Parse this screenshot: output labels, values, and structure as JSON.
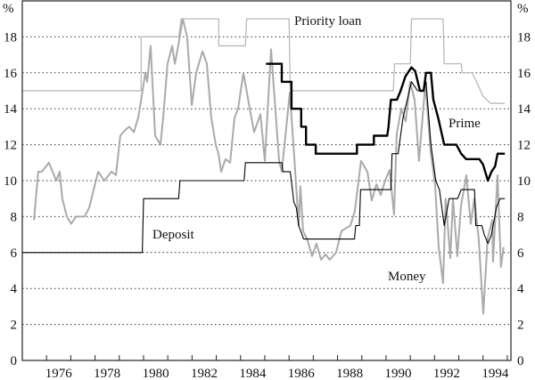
{
  "chart_data": {
    "type": "line",
    "title": "",
    "xlabel": "",
    "ylabel_left": "%",
    "ylabel_right": "%",
    "xlim": [
      1975,
      1995.15
    ],
    "ylim": [
      0,
      20
    ],
    "y_ticks": [
      0,
      2,
      4,
      6,
      8,
      10,
      12,
      14,
      16,
      18
    ],
    "x_tick_labels": [
      "1976",
      "1978",
      "1980",
      "1982",
      "1984",
      "1986",
      "1988",
      "1990",
      "1992",
      "1994"
    ],
    "grid": "horizontal dotted",
    "colors": {
      "priority_loan": "#b4b4b4",
      "money": "#aaaaaa",
      "prime": "#000000",
      "deposit": "#000000"
    },
    "series": [
      {
        "name": "Priority loan",
        "style": "step",
        "points": [
          [
            1975,
            15
          ],
          [
            1979.9,
            15
          ],
          [
            1979.9,
            18
          ],
          [
            1981.45,
            18
          ],
          [
            1981.55,
            19
          ],
          [
            1983.1,
            19
          ],
          [
            1983.1,
            17.5
          ],
          [
            1984.2,
            17.5
          ],
          [
            1984.25,
            19
          ],
          [
            1986.0,
            19
          ],
          [
            1986.05,
            15
          ],
          [
            1990.3,
            15
          ],
          [
            1990.35,
            16.5
          ],
          [
            1991.0,
            16.5
          ],
          [
            1991.05,
            19
          ],
          [
            1992.35,
            19
          ],
          [
            1992.4,
            16.5
          ],
          [
            1993.1,
            16.5
          ],
          [
            1993.15,
            16
          ],
          [
            1993.55,
            16
          ],
          [
            1993.8,
            15.3
          ],
          [
            1994.0,
            14.7
          ],
          [
            1994.3,
            14.3
          ],
          [
            1994.9,
            14.3
          ]
        ]
      },
      {
        "name": "Money",
        "style": "line",
        "points": [
          [
            1975.48,
            7.8
          ],
          [
            1975.66,
            10.5
          ],
          [
            1975.81,
            10.5
          ],
          [
            1976.1,
            11
          ],
          [
            1976.4,
            10
          ],
          [
            1976.54,
            10.5
          ],
          [
            1976.65,
            9
          ],
          [
            1976.84,
            8
          ],
          [
            1977.02,
            7.6
          ],
          [
            1977.21,
            8
          ],
          [
            1977.57,
            8
          ],
          [
            1977.76,
            8.5
          ],
          [
            1978.13,
            10.5
          ],
          [
            1978.38,
            10
          ],
          [
            1978.68,
            10.5
          ],
          [
            1978.86,
            10.3
          ],
          [
            1979.04,
            12.5
          ],
          [
            1979.23,
            12.8
          ],
          [
            1979.41,
            13
          ],
          [
            1979.6,
            12.7
          ],
          [
            1979.78,
            13.5
          ],
          [
            1979.96,
            15
          ],
          [
            1980.07,
            16
          ],
          [
            1980.15,
            15.5
          ],
          [
            1980.29,
            17.5
          ],
          [
            1980.48,
            12.5
          ],
          [
            1980.7,
            12
          ],
          [
            1980.81,
            13.5
          ],
          [
            1980.99,
            16.5
          ],
          [
            1981.18,
            17.5
          ],
          [
            1981.29,
            16.5
          ],
          [
            1981.43,
            17.5
          ],
          [
            1981.62,
            19
          ],
          [
            1981.8,
            18
          ],
          [
            1981.99,
            14.2
          ],
          [
            1982.17,
            16
          ],
          [
            1982.43,
            17.2
          ],
          [
            1982.61,
            16.5
          ],
          [
            1982.79,
            13.5
          ],
          [
            1982.98,
            12
          ],
          [
            1983.09,
            11.5
          ],
          [
            1983.2,
            10.5
          ],
          [
            1983.38,
            11.2
          ],
          [
            1983.57,
            11
          ],
          [
            1983.75,
            13.5
          ],
          [
            1983.9,
            14
          ],
          [
            1984.12,
            16
          ],
          [
            1984.38,
            14
          ],
          [
            1984.56,
            12.7
          ],
          [
            1984.82,
            13.7
          ],
          [
            1985.0,
            11.1
          ],
          [
            1985.26,
            17.3
          ],
          [
            1985.59,
            11.1
          ],
          [
            1985.7,
            10.5
          ],
          [
            1986.03,
            14.9
          ],
          [
            1986.21,
            11.4
          ],
          [
            1986.4,
            7.5
          ],
          [
            1986.47,
            9.7
          ],
          [
            1986.58,
            7.2
          ],
          [
            1986.76,
            6.7
          ],
          [
            1986.95,
            5.8
          ],
          [
            1987.13,
            6.5
          ],
          [
            1987.32,
            5.6
          ],
          [
            1987.5,
            5.9
          ],
          [
            1987.68,
            5.6
          ],
          [
            1987.94,
            6
          ],
          [
            1988.16,
            7.2
          ],
          [
            1988.53,
            7.5
          ],
          [
            1988.71,
            8.3
          ],
          [
            1988.97,
            11.1
          ],
          [
            1989.23,
            10.5
          ],
          [
            1989.41,
            8.9
          ],
          [
            1989.6,
            9.8
          ],
          [
            1989.78,
            9.2
          ],
          [
            1989.96,
            10
          ],
          [
            1990.15,
            10.6
          ],
          [
            1990.33,
            8.1
          ],
          [
            1990.44,
            12.6
          ],
          [
            1990.63,
            14
          ],
          [
            1990.81,
            13.3
          ],
          [
            1990.99,
            15.5
          ],
          [
            1991.18,
            14.5
          ],
          [
            1991.36,
            11.1
          ],
          [
            1991.62,
            15.4
          ],
          [
            1991.84,
            11.6
          ],
          [
            1992.02,
            9.8
          ],
          [
            1992.17,
            6.3
          ],
          [
            1992.35,
            4.3
          ],
          [
            1992.46,
            9
          ],
          [
            1992.65,
            5.7
          ],
          [
            1992.76,
            9
          ],
          [
            1992.94,
            5.8
          ],
          [
            1993.09,
            8.6
          ],
          [
            1993.31,
            10.3
          ],
          [
            1993.49,
            7.6
          ],
          [
            1993.64,
            9
          ],
          [
            1993.82,
            6.8
          ],
          [
            1994.01,
            2.6
          ],
          [
            1994.19,
            6.8
          ],
          [
            1994.38,
            7.8
          ],
          [
            1994.41,
            5.5
          ],
          [
            1994.6,
            10.3
          ],
          [
            1994.74,
            5.2
          ],
          [
            1994.85,
            6.3
          ]
        ]
      },
      {
        "name": "Prime",
        "style": "step",
        "points": [
          [
            1985.05,
            16.5
          ],
          [
            1985.7,
            16.5
          ],
          [
            1985.7,
            15.5
          ],
          [
            1986.1,
            15.5
          ],
          [
            1986.1,
            14
          ],
          [
            1986.5,
            14
          ],
          [
            1986.5,
            13
          ],
          [
            1986.7,
            13
          ],
          [
            1986.7,
            12
          ],
          [
            1987.1,
            12
          ],
          [
            1987.1,
            11.5
          ],
          [
            1988.8,
            11.5
          ],
          [
            1988.8,
            12
          ],
          [
            1989.5,
            12
          ],
          [
            1989.5,
            12.5
          ],
          [
            1990.05,
            12.5
          ],
          [
            1990.1,
            13
          ],
          [
            1990.2,
            14.5
          ],
          [
            1990.45,
            14.5
          ],
          [
            1990.6,
            15
          ],
          [
            1990.8,
            15.8
          ],
          [
            1991.05,
            16.3
          ],
          [
            1991.2,
            16.1
          ],
          [
            1991.4,
            15
          ],
          [
            1991.55,
            15
          ],
          [
            1991.65,
            16
          ],
          [
            1991.85,
            16
          ],
          [
            1991.95,
            14.5
          ],
          [
            1992.15,
            13.5
          ],
          [
            1992.4,
            12
          ],
          [
            1992.9,
            12
          ],
          [
            1993.1,
            11.5
          ],
          [
            1993.3,
            11.2
          ],
          [
            1993.85,
            11.2
          ],
          [
            1994.0,
            10.9
          ],
          [
            1994.2,
            10
          ],
          [
            1994.35,
            10.5
          ],
          [
            1994.5,
            10.8
          ],
          [
            1994.6,
            11.5
          ],
          [
            1994.9,
            11.5
          ]
        ]
      },
      {
        "name": "Deposit",
        "style": "step",
        "points": [
          [
            1975,
            6
          ],
          [
            1979.95,
            6
          ],
          [
            1980.0,
            9
          ],
          [
            1981.45,
            9
          ],
          [
            1981.5,
            10
          ],
          [
            1984.15,
            10
          ],
          [
            1984.2,
            11
          ],
          [
            1985.7,
            11
          ],
          [
            1985.75,
            10.5
          ],
          [
            1986.05,
            10.5
          ],
          [
            1986.2,
            8.8
          ],
          [
            1986.3,
            8.5
          ],
          [
            1986.4,
            7.5
          ],
          [
            1986.6,
            6.75
          ],
          [
            1988.7,
            6.75
          ],
          [
            1988.75,
            7.5
          ],
          [
            1988.9,
            7.5
          ],
          [
            1988.95,
            9.5
          ],
          [
            1990.2,
            9.5
          ],
          [
            1990.25,
            11.5
          ],
          [
            1990.5,
            11.5
          ],
          [
            1990.7,
            13.5
          ],
          [
            1991.05,
            15.5
          ],
          [
            1991.3,
            15
          ],
          [
            1991.55,
            15
          ],
          [
            1991.65,
            15.5
          ],
          [
            1991.85,
            12
          ],
          [
            1992.05,
            10
          ],
          [
            1992.2,
            9.5
          ],
          [
            1992.4,
            7.5
          ],
          [
            1992.6,
            9
          ],
          [
            1992.95,
            9
          ],
          [
            1993.1,
            9.5
          ],
          [
            1993.65,
            9.5
          ],
          [
            1993.7,
            7.5
          ],
          [
            1993.95,
            7.5
          ],
          [
            1994.05,
            7
          ],
          [
            1994.2,
            6.5
          ],
          [
            1994.35,
            7
          ],
          [
            1994.55,
            8.5
          ],
          [
            1994.7,
            9
          ],
          [
            1994.9,
            9
          ]
        ]
      }
    ],
    "annotations": [
      "Priority loan",
      "Prime",
      "Deposit",
      "Money"
    ]
  }
}
